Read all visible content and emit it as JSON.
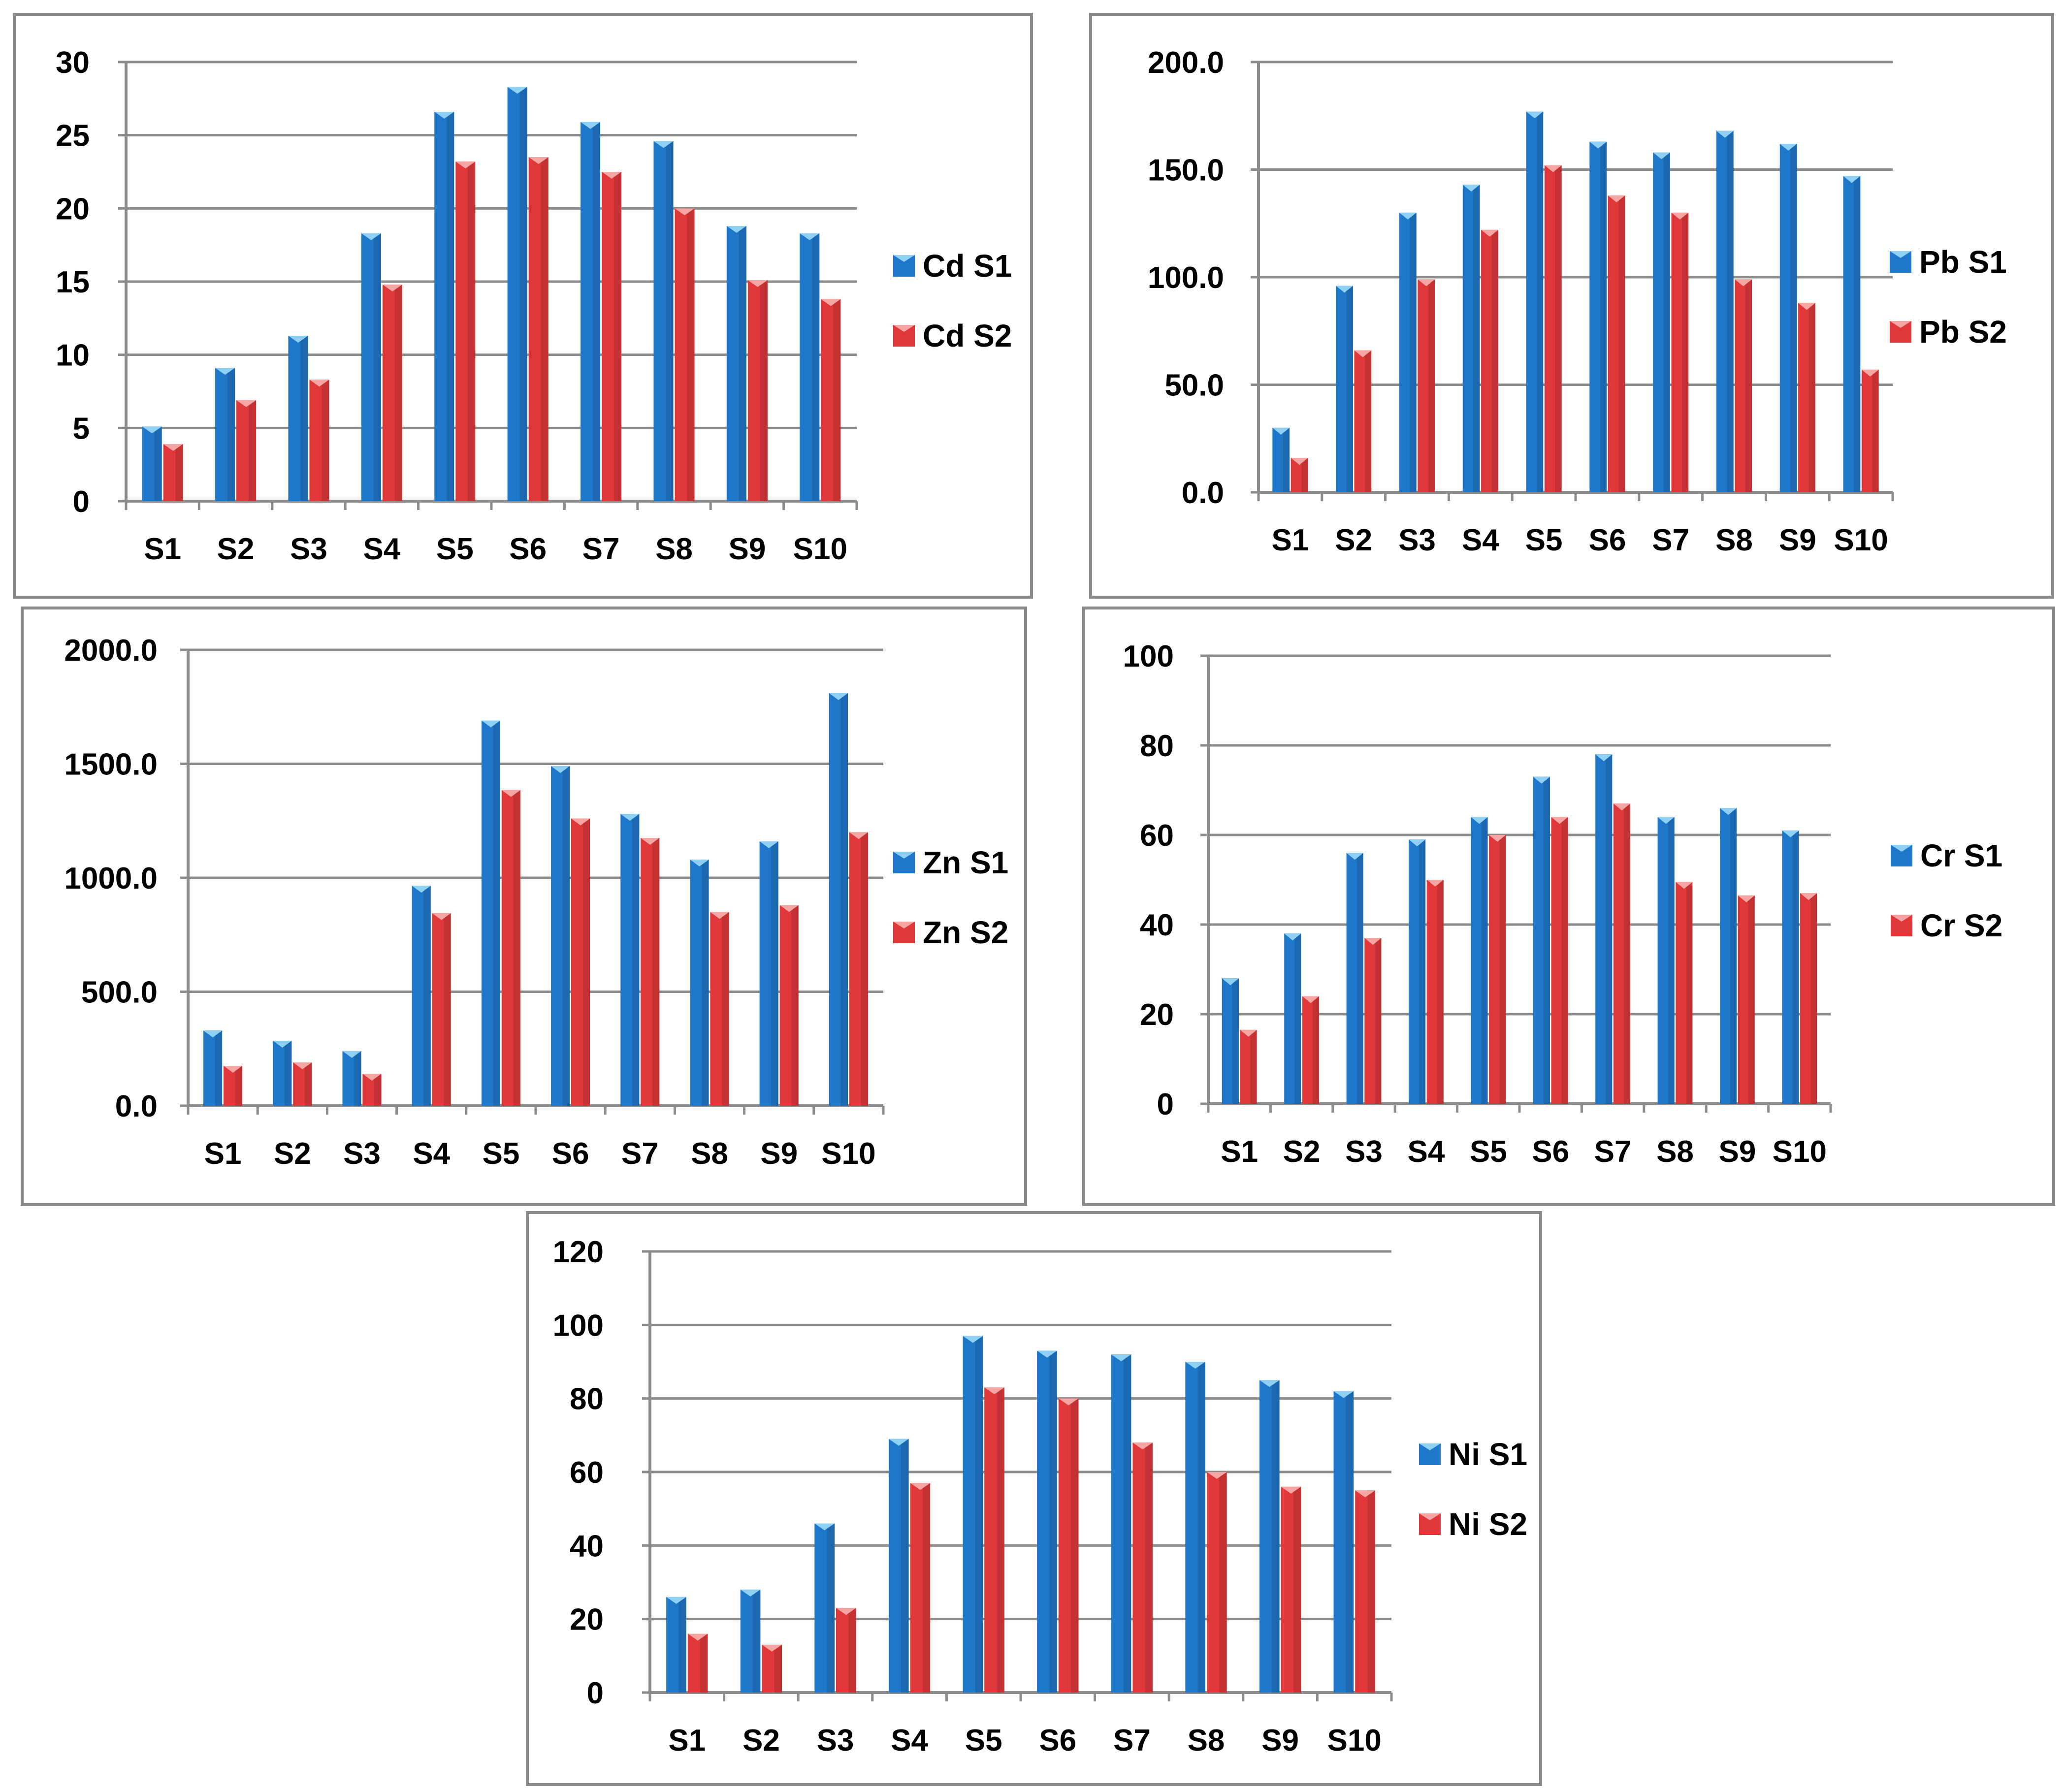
{
  "colors": {
    "series1": "#1f77c9",
    "series1_top": "#8fd0f5",
    "series2": "#e0383a",
    "series2_top": "#f7a5a3",
    "gridline": "#8c8c8c",
    "axis": "#8c8c8c",
    "border": "#8c8c8c"
  },
  "chart_data": [
    {
      "id": "cd",
      "type": "bar",
      "title": "",
      "categories": [
        "S1",
        "S2",
        "S3",
        "S4",
        "S5",
        "S6",
        "S7",
        "S8",
        "S9",
        "S10"
      ],
      "series": [
        {
          "name": "Cd S1",
          "values": [
            5.1,
            9.1,
            11.3,
            18.3,
            26.6,
            28.3,
            25.9,
            24.6,
            18.8,
            18.3
          ]
        },
        {
          "name": "Cd S2",
          "values": [
            3.9,
            6.9,
            8.3,
            14.8,
            23.2,
            23.5,
            22.5,
            20.0,
            15.1,
            13.8
          ]
        }
      ],
      "ylim": [
        0,
        30
      ],
      "yticks": [
        "0",
        "5",
        "10",
        "15",
        "20",
        "25",
        "30"
      ],
      "legend": "right"
    },
    {
      "id": "pb",
      "type": "bar",
      "title": "",
      "categories": [
        "S1",
        "S2",
        "S3",
        "S4",
        "S5",
        "S6",
        "S7",
        "S8",
        "S9",
        "S10"
      ],
      "series": [
        {
          "name": "Pb S1",
          "values": [
            30,
            96,
            130,
            143,
            177,
            163,
            158,
            168,
            162,
            147
          ]
        },
        {
          "name": "Pb S2",
          "values": [
            16,
            66,
            99,
            122,
            152,
            138,
            130,
            99,
            88,
            57
          ]
        }
      ],
      "ylim": [
        0,
        200
      ],
      "yticks": [
        "0.0",
        "50.0",
        "100.0",
        "150.0",
        "200.0"
      ],
      "legend": "right"
    },
    {
      "id": "zn",
      "type": "bar",
      "title": "",
      "categories": [
        "S1",
        "S2",
        "S3",
        "S4",
        "S5",
        "S6",
        "S7",
        "S8",
        "S9",
        "S10"
      ],
      "series": [
        {
          "name": "Zn S1",
          "values": [
            330,
            285,
            240,
            965,
            1690,
            1490,
            1280,
            1080,
            1160,
            1810
          ]
        },
        {
          "name": "Zn S2",
          "values": [
            175,
            190,
            140,
            845,
            1385,
            1260,
            1175,
            850,
            880,
            1200
          ]
        }
      ],
      "ylim": [
        0,
        2000
      ],
      "yticks": [
        "0.0",
        "500.0",
        "1000.0",
        "1500.0",
        "2000.0"
      ],
      "legend": "right"
    },
    {
      "id": "cr",
      "type": "bar",
      "title": "",
      "categories": [
        "S1",
        "S2",
        "S3",
        "S4",
        "S5",
        "S6",
        "S7",
        "S8",
        "S9",
        "S10"
      ],
      "series": [
        {
          "name": "Cr S1",
          "values": [
            28,
            38,
            56,
            59,
            64,
            73,
            78,
            64,
            66,
            61
          ]
        },
        {
          "name": "Cr S2",
          "values": [
            16.5,
            24,
            37,
            50,
            60,
            64,
            67,
            49.5,
            46.5,
            47
          ]
        }
      ],
      "ylim": [
        0,
        100
      ],
      "yticks": [
        "0",
        "20",
        "40",
        "60",
        "80",
        "100"
      ],
      "legend": "right"
    },
    {
      "id": "ni",
      "type": "bar",
      "title": "",
      "categories": [
        "S1",
        "S2",
        "S3",
        "S4",
        "S5",
        "S6",
        "S7",
        "S8",
        "S9",
        "S10"
      ],
      "series": [
        {
          "name": "Ni S1",
          "values": [
            26,
            28,
            46,
            69,
            97,
            93,
            92,
            90,
            85,
            82
          ]
        },
        {
          "name": "Ni S2",
          "values": [
            16,
            13,
            23,
            57,
            83,
            80,
            68,
            60,
            56,
            55
          ]
        }
      ],
      "ylim": [
        0,
        120
      ],
      "yticks": [
        "0",
        "20",
        "40",
        "60",
        "80",
        "100",
        "120"
      ],
      "legend": "right"
    }
  ]
}
